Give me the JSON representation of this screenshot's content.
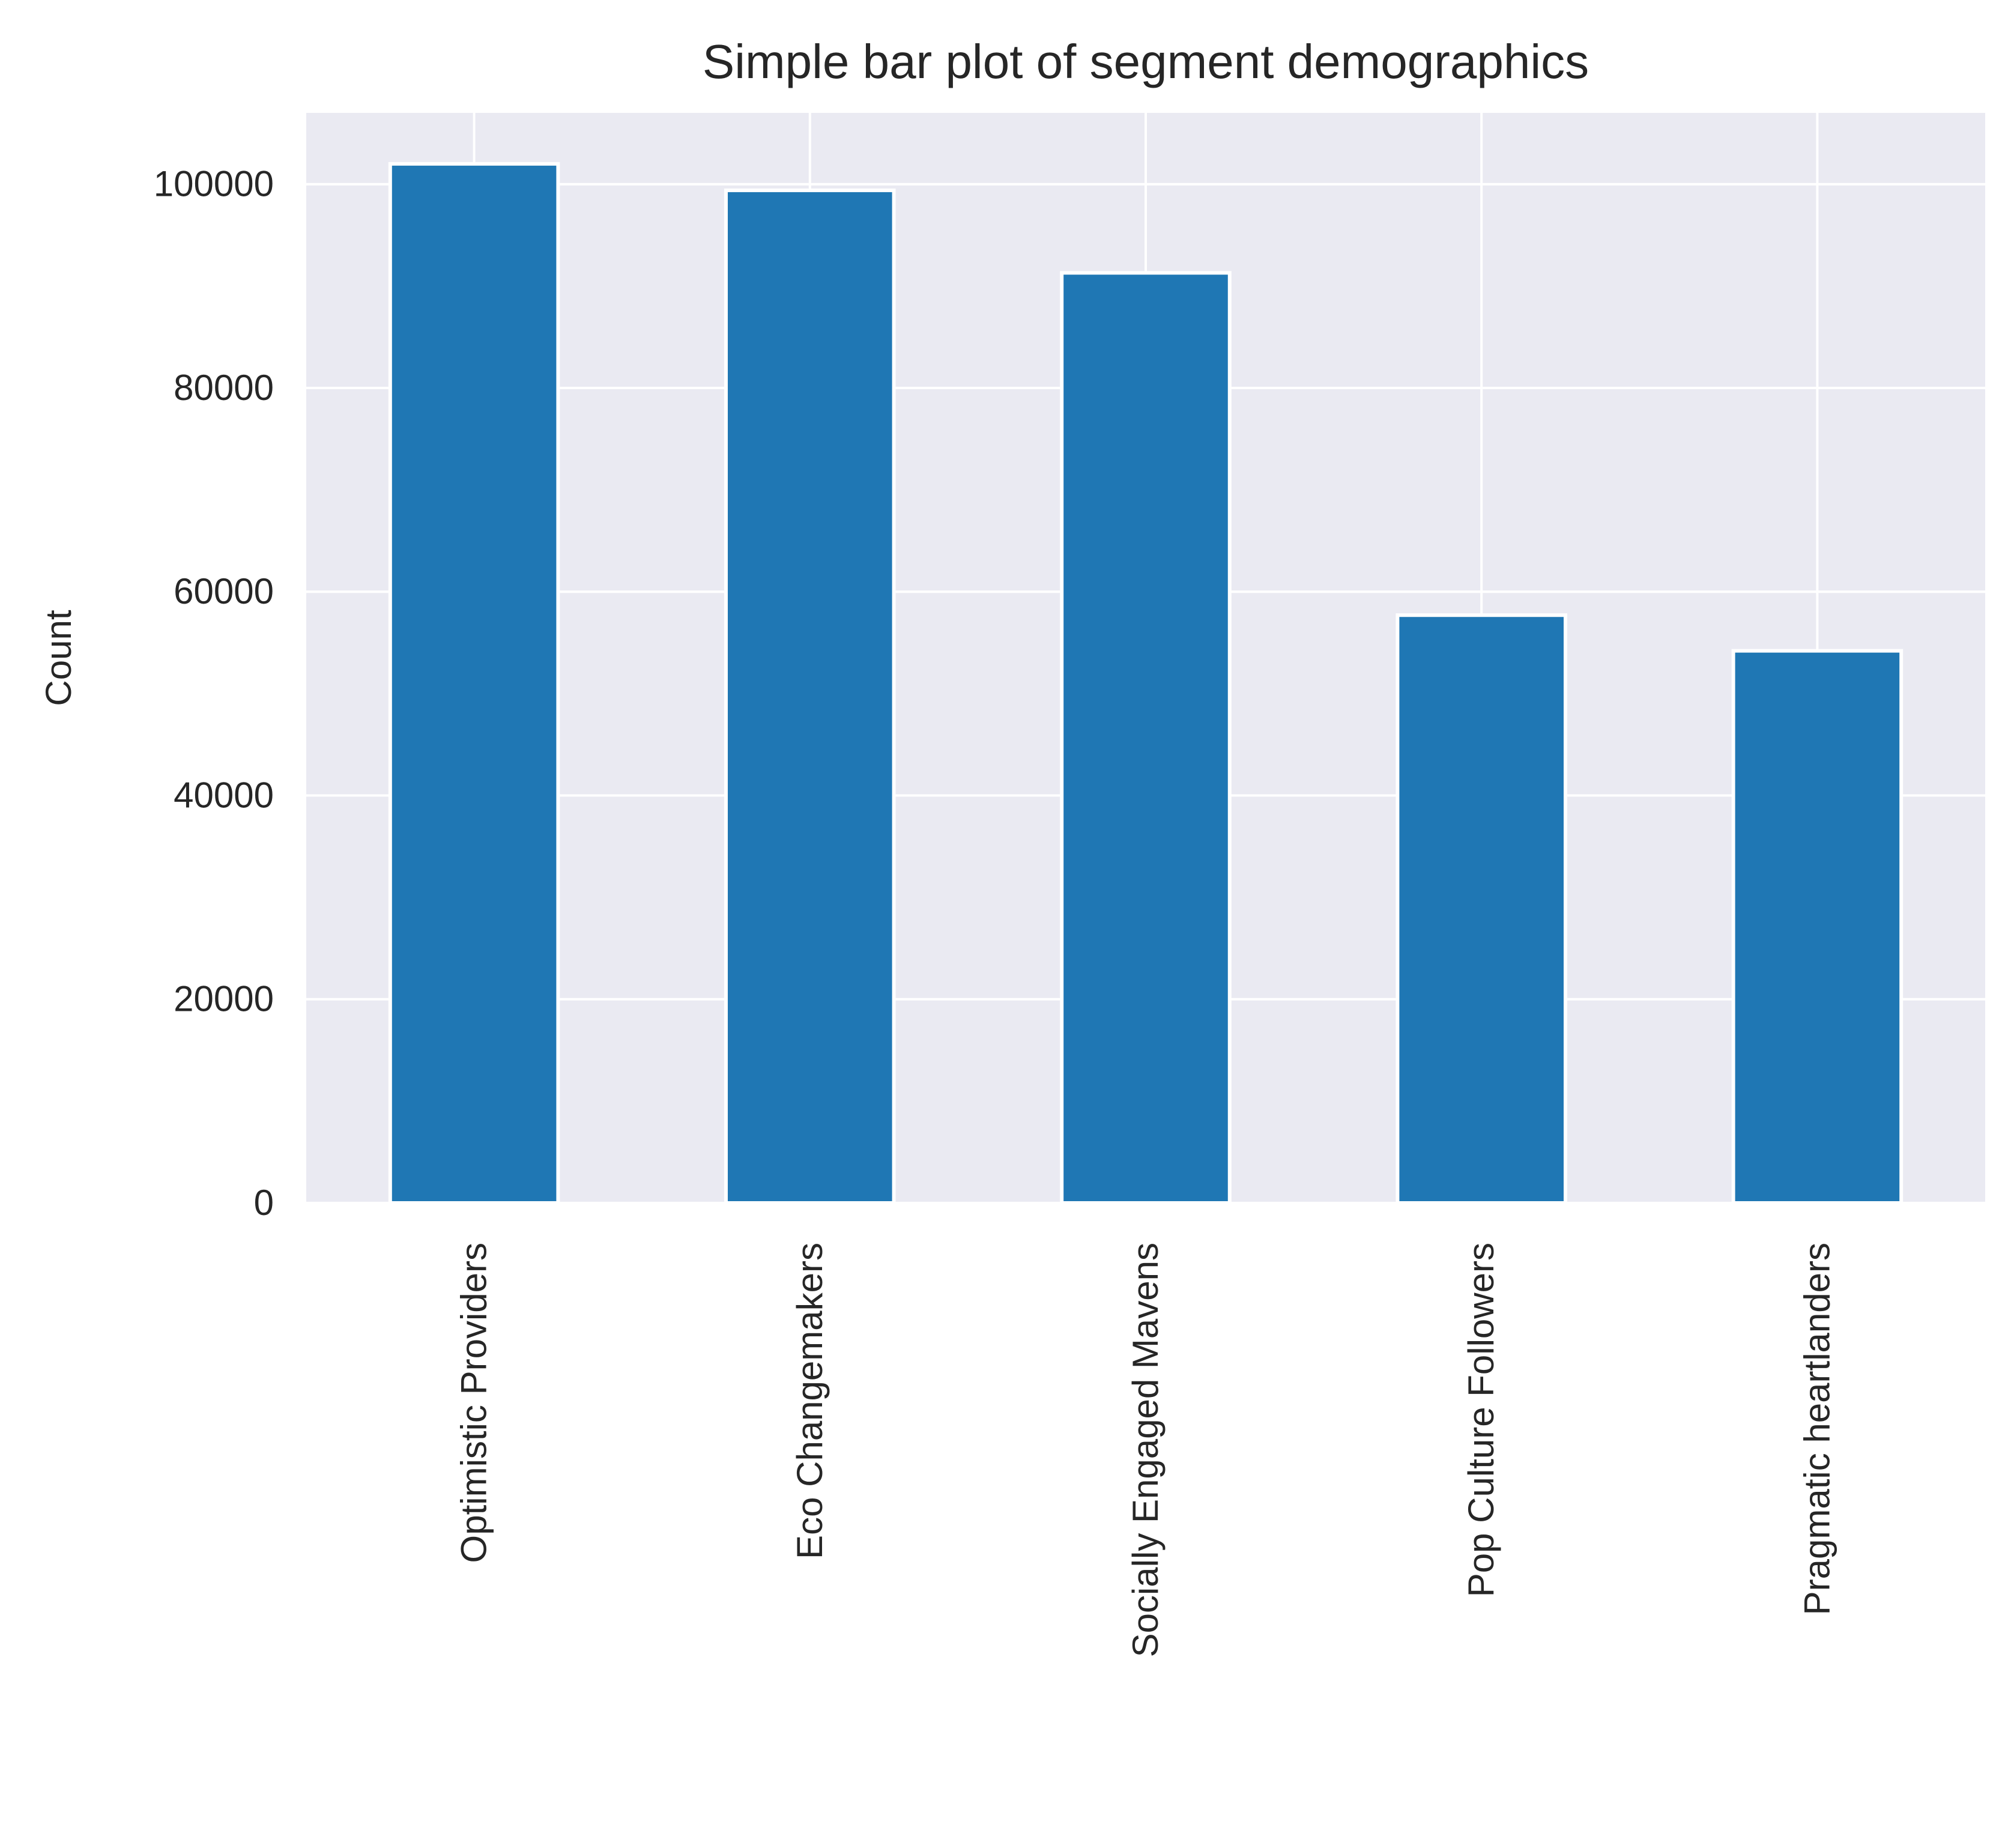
{
  "chart_data": {
    "type": "bar",
    "title": "Simple bar plot of segment demographics",
    "xlabel": "",
    "ylabel": "Count",
    "categories": [
      "Optimistic Providers",
      "Eco Changemakers",
      "Socially Engaged Mavens",
      "Pop Culture Followers",
      "Pragmatic heartlanders"
    ],
    "values": [
      102000,
      99400,
      91300,
      57700,
      54200
    ],
    "ylim": [
      0,
      107000
    ],
    "yticks": [
      0,
      20000,
      40000,
      60000,
      80000,
      100000
    ],
    "ytick_labels": [
      "0",
      "20000",
      "40000",
      "60000",
      "80000",
      "100000"
    ],
    "grid": true,
    "legend": "none",
    "colors": {
      "bar": "#1f77b4",
      "plot_background": "#eaeaf2",
      "grid": "#ffffff",
      "text": "#262626"
    }
  }
}
